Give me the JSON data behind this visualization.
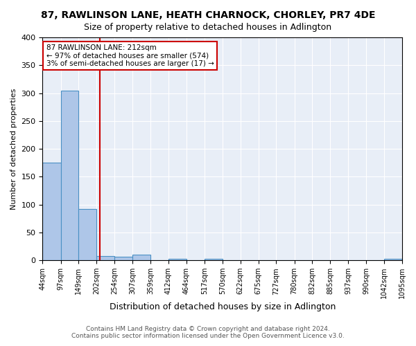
{
  "title": "87, RAWLINSON LANE, HEATH CHARNOCK, CHORLEY, PR7 4DE",
  "subtitle": "Size of property relative to detached houses in Adlington",
  "xlabel": "Distribution of detached houses by size in Adlington",
  "ylabel": "Number of detached properties",
  "footer_line1": "Contains HM Land Registry data © Crown copyright and database right 2024.",
  "footer_line2": "Contains public sector information licensed under the Open Government Licence v3.0.",
  "annotation_line1": "87 RAWLINSON LANE: 212sqm",
  "annotation_line2": "← 97% of detached houses are smaller (574)",
  "annotation_line3": "3% of semi-detached houses are larger (17) →",
  "property_size": 212,
  "bar_edges": [
    44,
    97,
    149,
    202,
    254,
    307,
    359,
    412,
    464,
    517,
    570,
    622,
    675,
    727,
    780,
    832,
    885,
    937,
    990,
    1042,
    1095
  ],
  "bar_heights": [
    175,
    305,
    92,
    8,
    7,
    10,
    0,
    3,
    0,
    3,
    0,
    0,
    0,
    0,
    0,
    0,
    0,
    0,
    0,
    3
  ],
  "bar_color": "#aec6e8",
  "bar_edge_color": "#4a90c4",
  "vline_color": "#cc0000",
  "vline_x": 212,
  "annotation_box_color": "#cc0000",
  "background_color": "#e8eef7",
  "ylim": [
    0,
    400
  ],
  "yticks": [
    0,
    50,
    100,
    150,
    200,
    250,
    300,
    350,
    400
  ]
}
